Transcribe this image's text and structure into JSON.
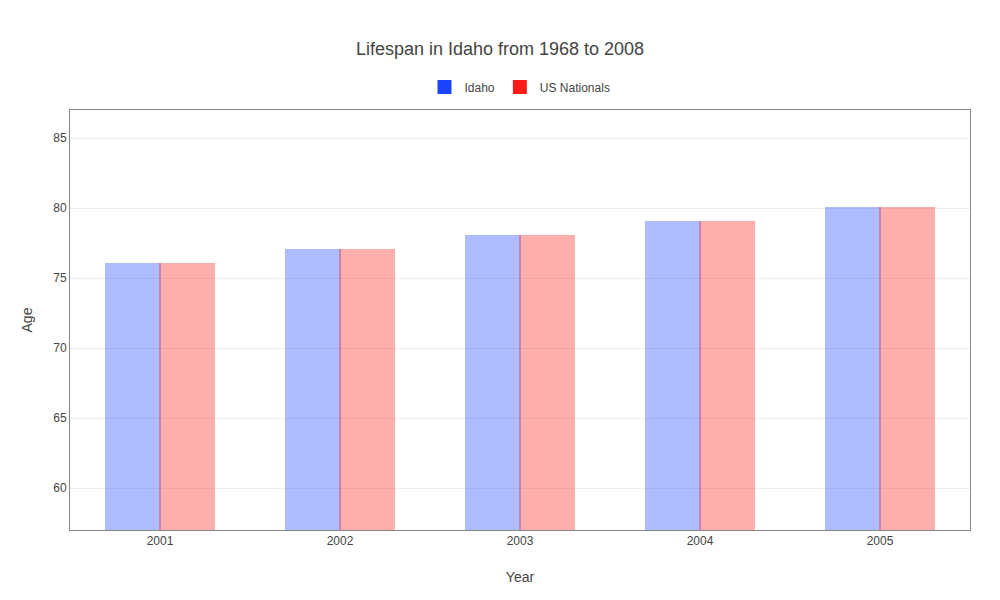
{
  "chart_data": {
    "type": "bar",
    "title": "Lifespan in Idaho from 1968 to 2008",
    "x_label": "Year",
    "y_label": "Age",
    "categories": [
      "2001",
      "2002",
      "2003",
      "2004",
      "2005"
    ],
    "series": [
      {
        "name": "Idaho",
        "color": "#1a44ff",
        "values": [
          76,
          77,
          78,
          79,
          80
        ]
      },
      {
        "name": "US Nationals",
        "color": "#ff1a1a",
        "values": [
          76,
          77,
          78,
          79,
          80
        ]
      }
    ],
    "ylim": [
      57,
      87
    ],
    "yticks": [
      60,
      65,
      70,
      75,
      80,
      85
    ],
    "grid": true,
    "legend": "top"
  }
}
